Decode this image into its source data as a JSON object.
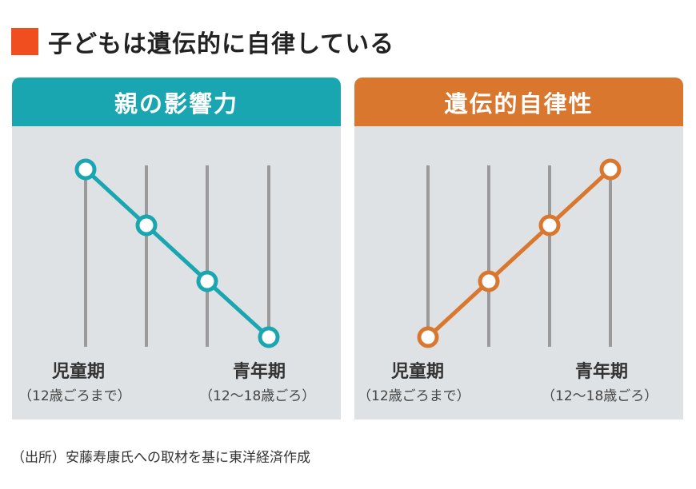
{
  "title": "子どもは遺伝的に自律している",
  "accent_color": "#f04e1e",
  "chart_data": [
    {
      "type": "line",
      "title": "親の影響力",
      "color": "#1aa6b0",
      "categories": [
        "児童期",
        "",
        "",
        "青年期"
      ],
      "category_sublabels": [
        "（12歳ごろまで）",
        "",
        "",
        "（12～18歳ごろ）"
      ],
      "values": [
        4,
        3,
        2,
        1
      ],
      "ylim": [
        1,
        4
      ],
      "grid": true
    },
    {
      "type": "line",
      "title": "遺伝的自律性",
      "color": "#d9772f",
      "categories": [
        "児童期",
        "",
        "",
        "青年期"
      ],
      "category_sublabels": [
        "（12歳ごろまで）",
        "",
        "",
        "（12～18歳ごろ）"
      ],
      "values": [
        1,
        2,
        3,
        4
      ],
      "ylim": [
        1,
        4
      ],
      "grid": true
    }
  ],
  "source": "（出所）安藤寿康氏への取材を基に東洋経済作成"
}
